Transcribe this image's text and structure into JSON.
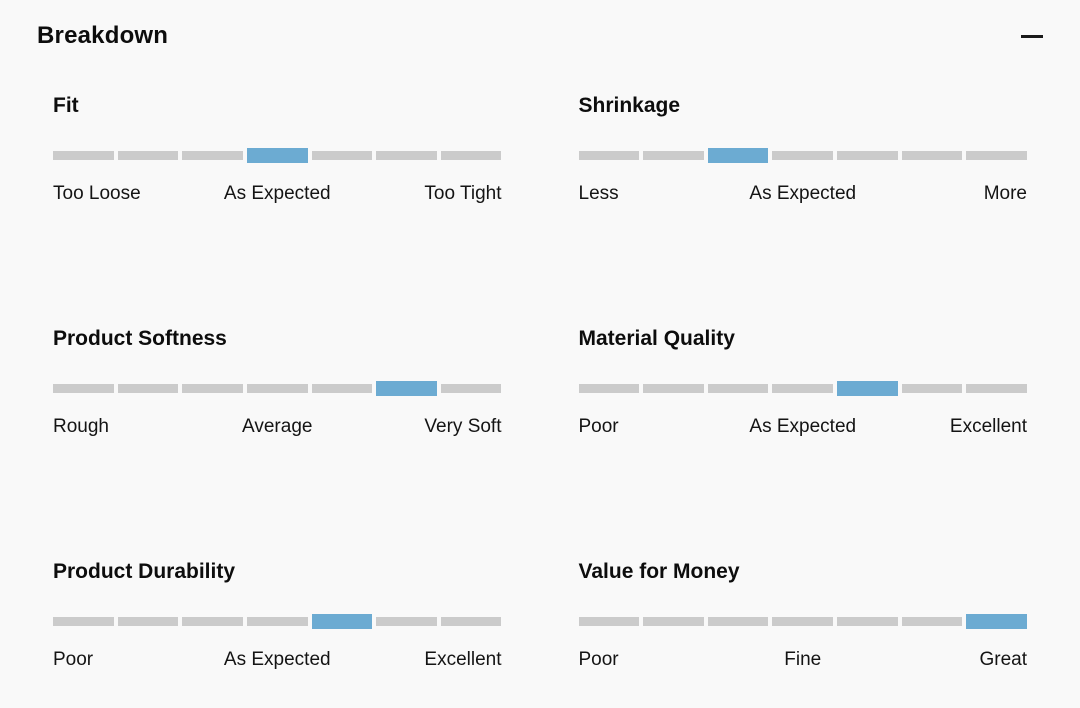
{
  "panel": {
    "title": "Breakdown",
    "collapse_icon": "minus-icon",
    "background": "#f9f9f9"
  },
  "colors": {
    "segment_inactive": "#cbcbcb",
    "segment_active": "#6cabd2",
    "heading_text": "#0d0d0d",
    "label_text": "#141414"
  },
  "scales": [
    {
      "title": "Fit",
      "segments": 7,
      "active_index": 4,
      "labels": {
        "left": "Too Loose",
        "center": "As Expected",
        "right": "Too Tight"
      }
    },
    {
      "title": "Shrinkage",
      "segments": 7,
      "active_index": 3,
      "labels": {
        "left": "Less",
        "center": "As Expected",
        "right": "More"
      }
    },
    {
      "title": "Product Softness",
      "segments": 7,
      "active_index": 6,
      "labels": {
        "left": "Rough",
        "center": "Average",
        "right": "Very Soft"
      }
    },
    {
      "title": "Material Quality",
      "segments": 7,
      "active_index": 5,
      "labels": {
        "left": "Poor",
        "center": "As Expected",
        "right": "Excellent"
      }
    },
    {
      "title": "Product Durability",
      "segments": 7,
      "active_index": 5,
      "labels": {
        "left": "Poor",
        "center": "As Expected",
        "right": "Excellent"
      }
    },
    {
      "title": "Value for Money",
      "segments": 7,
      "active_index": 7,
      "labels": {
        "left": "Poor",
        "center": "Fine",
        "right": "Great"
      }
    }
  ]
}
